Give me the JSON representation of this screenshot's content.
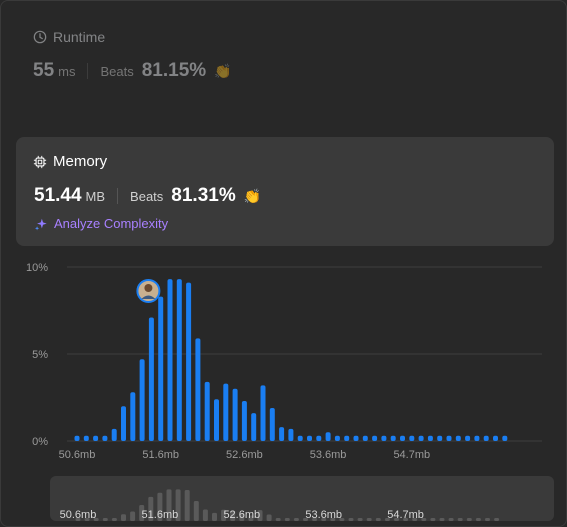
{
  "runtime": {
    "title": "Runtime",
    "value": "55",
    "unit": "ms",
    "beats_label": "Beats",
    "beats_value": "81.15%",
    "icon": "clock-icon"
  },
  "memory": {
    "title": "Memory",
    "value": "51.44",
    "unit": "MB",
    "beats_label": "Beats",
    "beats_value": "81.31%",
    "icon": "chip-icon",
    "analyze_label": "Analyze Complexity"
  },
  "colors": {
    "bar": "#1a7ef2",
    "grid": "#3e3e3e",
    "accent_green": "#2cbb5d",
    "accent_purple": "#a880ff",
    "minimap_bar": "#5a5a5a"
  },
  "chart_data": {
    "type": "bar",
    "ylim": [
      0,
      10
    ],
    "y_ticks": [
      "0%",
      "5%",
      "10%"
    ],
    "x_ticks": [
      "50.6mb",
      "51.6mb",
      "52.6mb",
      "53.6mb",
      "54.7mb"
    ],
    "x_tick_index": [
      0,
      9,
      18,
      27,
      36
    ],
    "values": [
      0.3,
      0.3,
      0.3,
      0.3,
      0.7,
      2.0,
      2.8,
      4.7,
      7.1,
      8.3,
      9.3,
      9.3,
      9.1,
      5.9,
      3.4,
      2.4,
      3.3,
      3.0,
      2.3,
      1.6,
      3.2,
      1.9,
      0.8,
      0.7,
      0.3,
      0.3,
      0.3,
      0.5,
      0.3,
      0.3,
      0.3,
      0.3,
      0.3,
      0.3,
      0.3,
      0.3,
      0.3,
      0.3,
      0.3,
      0.3,
      0.3,
      0.3,
      0.3,
      0.3,
      0.3,
      0.3,
      0.3
    ],
    "avatar_index": 8
  },
  "minimap": {
    "x_ticks": [
      "50.6mb",
      "51.6mb",
      "52.6mb",
      "53.6mb",
      "54.7mb"
    ]
  }
}
